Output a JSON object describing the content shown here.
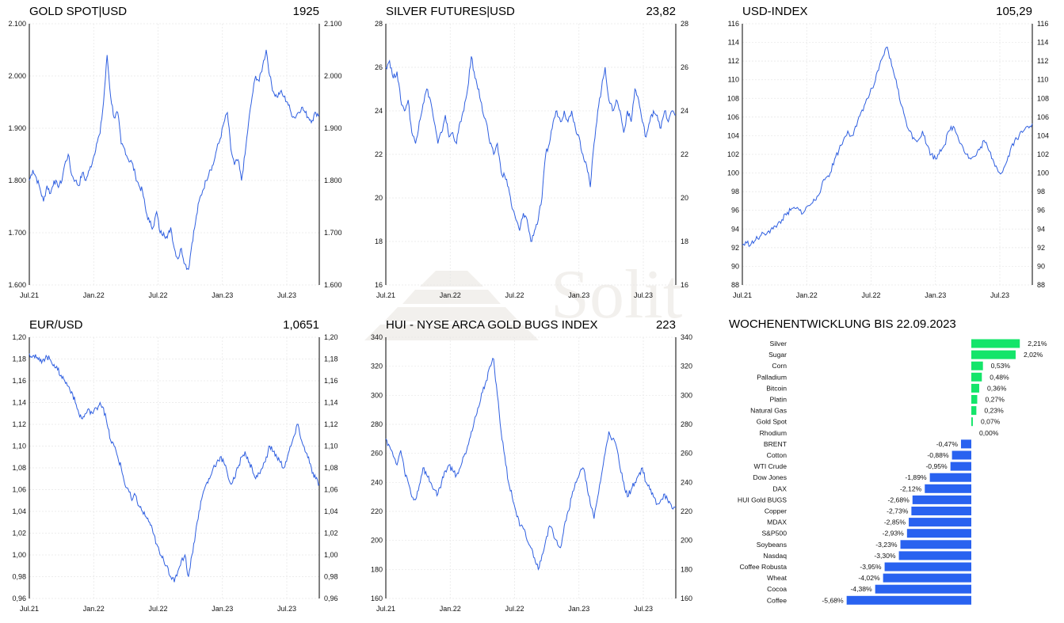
{
  "colors": {
    "line": "#2f5fe0",
    "pos": "#14e56a",
    "neg": "#2962f0",
    "grid": "#e6e6e6"
  },
  "panels": [
    {
      "title": "GOLD SPOT|USD",
      "last": "1925"
    },
    {
      "title": "SILVER FUTURES|USD",
      "last": "23,82"
    },
    {
      "title": "USD-INDEX",
      "last": "105,29"
    },
    {
      "title": "EUR/USD",
      "last": "1,0651"
    },
    {
      "title": "HUI - NYSE ARCA GOLD BUGS INDEX",
      "last": "223"
    }
  ],
  "weekly": {
    "title": "WOCHENENTWICKLUNG BIS  22.09.2023"
  },
  "chart_data": [
    {
      "type": "line",
      "title": "GOLD SPOT|USD",
      "x_ticks": [
        "Jul.21",
        "Jan.22",
        "Jul.22",
        "Jan.23",
        "Jul.23"
      ],
      "y_ticks": [
        "1.600",
        "1.700",
        "1.800",
        "1.900",
        "2.000",
        "2.100"
      ],
      "ylim": [
        1600,
        2100
      ],
      "series": [
        {
          "values": [
            1800,
            1820,
            1805,
            1785,
            1760,
            1790,
            1775,
            1800,
            1790,
            1795,
            1830,
            1850,
            1810,
            1800,
            1790,
            1815,
            1800,
            1820,
            1840,
            1870,
            1890,
            1950,
            2040,
            1960,
            1920,
            1930,
            1870,
            1860,
            1840,
            1835,
            1810,
            1790,
            1780,
            1740,
            1720,
            1710,
            1740,
            1700,
            1700,
            1690,
            1710,
            1670,
            1650,
            1670,
            1640,
            1630,
            1680,
            1720,
            1760,
            1780,
            1800,
            1820,
            1830,
            1860,
            1880,
            1910,
            1930,
            1860,
            1830,
            1840,
            1800,
            1850,
            1910,
            1960,
            2000,
            1990,
            2020,
            2050,
            2000,
            1970,
            1960,
            1970,
            1960,
            1950,
            1930,
            1920,
            1930,
            1940,
            1930,
            1920,
            1915,
            1930,
            1925
          ]
        }
      ],
      "grid": true
    },
    {
      "type": "line",
      "title": "SILVER FUTURES|USD",
      "x_ticks": [
        "Jul.21",
        "Jan.22",
        "Jul.22",
        "Jan.23",
        "Jul.23"
      ],
      "y_ticks": [
        "16",
        "18",
        "20",
        "22",
        "24",
        "26",
        "28"
      ],
      "ylim": [
        16,
        28
      ],
      "series": [
        {
          "values": [
            26,
            26.3,
            25.5,
            25.8,
            24.5,
            24,
            24.5,
            23,
            22.5,
            23.5,
            24.3,
            25,
            24.5,
            23.5,
            22.5,
            23,
            23.8,
            22.8,
            23,
            22.5,
            23.5,
            24,
            25,
            26.5,
            25.5,
            25,
            24,
            23.5,
            22.5,
            22,
            22.5,
            21.2,
            21,
            20.5,
            19.5,
            19,
            18.5,
            19.3,
            19,
            18,
            18.5,
            19,
            20,
            22,
            22.5,
            23.5,
            24,
            23.5,
            24,
            23.5,
            24,
            23.2,
            22.8,
            22,
            21.5,
            20.5,
            22.5,
            24,
            25,
            26,
            24.5,
            24,
            24.5,
            24,
            23,
            24,
            23.5,
            25,
            24.5,
            23.5,
            22.8,
            23.5,
            24,
            23.8,
            23.2,
            24,
            23.5,
            24,
            23.82
          ]
        }
      ],
      "grid": true
    },
    {
      "type": "line",
      "title": "USD-INDEX",
      "x_ticks": [
        "Jul.21",
        "Jan.22",
        "Jul.22",
        "Jan.23",
        "Jul.23"
      ],
      "y_ticks": [
        "88",
        "90",
        "92",
        "94",
        "96",
        "98",
        "100",
        "102",
        "104",
        "106",
        "108",
        "110",
        "112",
        "114",
        "116"
      ],
      "ylim": [
        88,
        116
      ],
      "series": [
        {
          "values": [
            92.3,
            92.5,
            92.4,
            92.8,
            93.2,
            93.5,
            93.8,
            94,
            94.5,
            95,
            95.5,
            96,
            96.2,
            96,
            95.8,
            96.5,
            96.8,
            97.5,
            98.5,
            99.5,
            100,
            101.5,
            102.5,
            103.5,
            104.5,
            104,
            105,
            106.5,
            107.5,
            108.5,
            109.5,
            111,
            112.5,
            113.5,
            111.5,
            110,
            107.5,
            106,
            104.5,
            103.8,
            103.5,
            104.5,
            103,
            102,
            101.5,
            102.5,
            103,
            104.5,
            105,
            104,
            103,
            102,
            101.5,
            101.8,
            102.5,
            103.5,
            102.5,
            101.5,
            100.5,
            100,
            101,
            102.5,
            103.5,
            104,
            104.5,
            105,
            105.29
          ]
        }
      ],
      "grid": true
    },
    {
      "type": "line",
      "title": "EUR/USD",
      "x_ticks": [
        "Jul.21",
        "Jan.22",
        "Jul.22",
        "Jan.23",
        "Jul.23"
      ],
      "y_ticks": [
        "0,96",
        "0,98",
        "1,00",
        "1,02",
        "1,04",
        "1,06",
        "1,08",
        "1,10",
        "1,12",
        "1,14",
        "1,16",
        "1,18",
        "1,20"
      ],
      "ylim": [
        0.96,
        1.2
      ],
      "series": [
        {
          "values": [
            1.185,
            1.183,
            1.181,
            1.178,
            1.18,
            1.182,
            1.179,
            1.175,
            1.17,
            1.165,
            1.16,
            1.155,
            1.15,
            1.14,
            1.13,
            1.125,
            1.13,
            1.133,
            1.13,
            1.135,
            1.14,
            1.135,
            1.12,
            1.105,
            1.1,
            1.09,
            1.08,
            1.065,
            1.06,
            1.05,
            1.055,
            1.045,
            1.04,
            1.035,
            1.03,
            1.02,
            1.01,
            1.0,
            0.995,
            0.99,
            0.98,
            0.975,
            0.985,
            0.995,
            1.0,
            0.98,
            1.0,
            1.02,
            1.04,
            1.055,
            1.065,
            1.07,
            1.08,
            1.085,
            1.09,
            1.085,
            1.075,
            1.065,
            1.07,
            1.08,
            1.09,
            1.095,
            1.085,
            1.08,
            1.07,
            1.075,
            1.08,
            1.09,
            1.1,
            1.095,
            1.09,
            1.085,
            1.08,
            1.09,
            1.1,
            1.11,
            1.12,
            1.105,
            1.095,
            1.09,
            1.075,
            1.07,
            1.065
          ]
        }
      ],
      "grid": true
    },
    {
      "type": "line",
      "title": "HUI - NYSE ARCA GOLD BUGS INDEX",
      "x_ticks": [
        "Jul.21",
        "Jan.22",
        "Jul.22",
        "Jan.23",
        "Jul.23"
      ],
      "y_ticks": [
        "160",
        "180",
        "200",
        "220",
        "240",
        "260",
        "280",
        "300",
        "320",
        "340"
      ],
      "ylim": [
        160,
        340
      ],
      "series": [
        {
          "values": [
            270,
            265,
            258,
            252,
            262,
            248,
            240,
            230,
            228,
            238,
            250,
            245,
            240,
            235,
            232,
            240,
            248,
            252,
            248,
            245,
            250,
            258,
            265,
            275,
            285,
            292,
            302,
            310,
            320,
            325,
            300,
            275,
            258,
            240,
            230,
            220,
            210,
            208,
            200,
            195,
            188,
            180,
            190,
            200,
            210,
            205,
            200,
            195,
            210,
            220,
            230,
            240,
            245,
            250,
            240,
            225,
            215,
            230,
            245,
            260,
            275,
            270,
            265,
            250,
            240,
            230,
            235,
            240,
            245,
            250,
            240,
            235,
            230,
            225,
            228,
            232,
            226,
            222,
            223
          ]
        }
      ],
      "grid": true
    },
    {
      "type": "bar",
      "title": "WOCHENENTWICKLUNG BIS  22.09.2023",
      "categories": [
        "Silver",
        "Sugar",
        "Corn",
        "Palladium",
        "Bitcoin",
        "Platin",
        "Natural Gas",
        "Gold Spot",
        "Rhodium",
        "BRENT",
        "Cotton",
        "WTI Crude",
        "Dow Jones",
        "DAX",
        "HUI Gold BUGS",
        "Copper",
        "MDAX",
        "S&P500",
        "Soybeans",
        "Nasdaq",
        "Coffee Robusta",
        "Wheat",
        "Cocoa",
        "Coffee"
      ],
      "values": [
        2.21,
        2.02,
        0.53,
        0.48,
        0.36,
        0.27,
        0.23,
        0.07,
        0.0,
        -0.47,
        -0.88,
        -0.95,
        -1.89,
        -2.12,
        -2.68,
        -2.73,
        -2.85,
        -2.93,
        -3.23,
        -3.3,
        -3.95,
        -4.02,
        -4.38,
        -5.68
      ],
      "labels": [
        "2,21%",
        "2,02%",
        "0,53%",
        "0,48%",
        "0,36%",
        "0,27%",
        "0,23%",
        "0,07%",
        "0,00%",
        "-0,47%",
        "-0,88%",
        "-0,95%",
        "-1,89%",
        "-2,12%",
        "-2,68%",
        "-2,73%",
        "-2,85%",
        "-2,93%",
        "-3,23%",
        "-3,30%",
        "-3,95%",
        "-4,02%",
        "-4,38%",
        "-5,68%"
      ]
    }
  ]
}
